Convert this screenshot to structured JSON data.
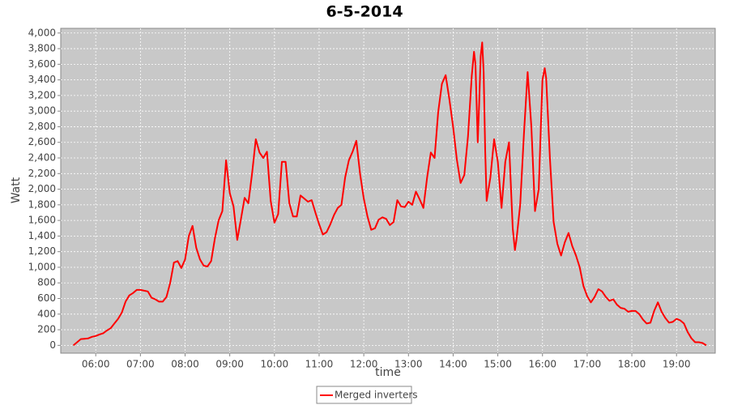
{
  "chart_data": {
    "type": "line",
    "title": "6-5-2014",
    "x_label": "time",
    "y_label": "Watt",
    "x": [
      "05:30",
      "05:35",
      "05:40",
      "05:45",
      "05:50",
      "05:55",
      "06:00",
      "06:05",
      "06:10",
      "06:15",
      "06:20",
      "06:25",
      "06:30",
      "06:35",
      "06:40",
      "06:45",
      "06:50",
      "06:55",
      "07:00",
      "07:05",
      "07:10",
      "07:15",
      "07:20",
      "07:25",
      "07:30",
      "07:35",
      "07:40",
      "07:45",
      "07:50",
      "07:55",
      "08:00",
      "08:05",
      "08:10",
      "08:15",
      "08:20",
      "08:25",
      "08:30",
      "08:35",
      "08:40",
      "08:45",
      "08:50",
      "08:55",
      "09:00",
      "09:05",
      "09:10",
      "09:15",
      "09:20",
      "09:25",
      "09:30",
      "09:35",
      "09:40",
      "09:45",
      "09:50",
      "09:55",
      "10:00",
      "10:05",
      "10:10",
      "10:15",
      "10:20",
      "10:25",
      "10:30",
      "10:35",
      "10:40",
      "10:45",
      "10:50",
      "10:55",
      "11:00",
      "11:05",
      "11:10",
      "11:15",
      "11:20",
      "11:25",
      "11:30",
      "11:35",
      "11:40",
      "11:45",
      "11:50",
      "11:55",
      "12:00",
      "12:05",
      "12:10",
      "12:15",
      "12:20",
      "12:25",
      "12:30",
      "12:35",
      "12:40",
      "12:45",
      "12:50",
      "12:55",
      "13:00",
      "13:05",
      "13:10",
      "13:15",
      "13:20",
      "13:25",
      "13:30",
      "13:35",
      "13:40",
      "13:45",
      "13:50",
      "13:55",
      "14:00",
      "14:05",
      "14:10",
      "14:15",
      "14:20",
      "14:25",
      "14:28",
      "14:30",
      "14:33",
      "14:35",
      "14:37",
      "14:39",
      "14:41",
      "14:43",
      "14:45",
      "14:50",
      "14:55",
      "15:00",
      "15:05",
      "15:10",
      "15:15",
      "15:20",
      "15:23",
      "15:25",
      "15:30",
      "15:35",
      "15:40",
      "15:45",
      "15:50",
      "15:55",
      "16:00",
      "16:03",
      "16:05",
      "16:10",
      "16:15",
      "16:20",
      "16:25",
      "16:30",
      "16:35",
      "16:40",
      "16:45",
      "16:50",
      "16:55",
      "17:00",
      "17:05",
      "17:10",
      "17:15",
      "17:20",
      "17:25",
      "17:30",
      "17:35",
      "17:40",
      "17:45",
      "17:50",
      "17:55",
      "18:00",
      "18:05",
      "18:10",
      "18:15",
      "18:20",
      "18:25",
      "18:30",
      "18:35",
      "18:40",
      "18:45",
      "18:50",
      "18:55",
      "19:00",
      "19:05",
      "19:10",
      "19:15",
      "19:20",
      "19:25",
      "19:30",
      "19:35",
      "19:40"
    ],
    "series": [
      {
        "name": "Merged inverters",
        "color": "#ff0000",
        "values": [
          0,
          40,
          80,
          85,
          90,
          110,
          120,
          140,
          155,
          190,
          220,
          280,
          340,
          420,
          560,
          640,
          670,
          710,
          710,
          700,
          690,
          610,
          590,
          560,
          560,
          620,
          800,
          1060,
          1080,
          990,
          1100,
          1400,
          1530,
          1250,
          1100,
          1020,
          1010,
          1080,
          1370,
          1600,
          1720,
          2370,
          1950,
          1780,
          1350,
          1620,
          1890,
          1820,
          2200,
          2640,
          2470,
          2400,
          2480,
          1850,
          1570,
          1680,
          2350,
          2350,
          1820,
          1650,
          1650,
          1920,
          1880,
          1840,
          1860,
          1700,
          1550,
          1420,
          1450,
          1550,
          1670,
          1760,
          1800,
          2150,
          2370,
          2480,
          2620,
          2200,
          1880,
          1650,
          1480,
          1500,
          1610,
          1640,
          1620,
          1540,
          1580,
          1860,
          1780,
          1770,
          1840,
          1800,
          1970,
          1870,
          1760,
          2150,
          2470,
          2400,
          2990,
          3350,
          3460,
          3150,
          2800,
          2380,
          2080,
          2180,
          2680,
          3450,
          3760,
          3600,
          2600,
          3100,
          3700,
          3880,
          3500,
          2500,
          1850,
          2150,
          2640,
          2350,
          1760,
          2350,
          2600,
          1500,
          1220,
          1350,
          1800,
          2700,
          3500,
          2800,
          1720,
          2000,
          3400,
          3550,
          3420,
          2400,
          1580,
          1300,
          1150,
          1320,
          1440,
          1270,
          1150,
          1000,
          760,
          630,
          550,
          620,
          720,
          690,
          620,
          570,
          590,
          520,
          480,
          470,
          430,
          440,
          440,
          400,
          330,
          280,
          290,
          440,
          550,
          430,
          350,
          290,
          300,
          340,
          320,
          280,
          170,
          90,
          40,
          40,
          30,
          0
        ]
      }
    ],
    "xlim": [
      "05:13",
      "19:52"
    ],
    "xticks": [
      "06:00",
      "07:00",
      "08:00",
      "09:00",
      "10:00",
      "11:00",
      "12:00",
      "13:00",
      "14:00",
      "15:00",
      "16:00",
      "17:00",
      "18:00",
      "19:00"
    ],
    "ylim": [
      -100,
      4060
    ],
    "yticks": [
      0,
      200,
      400,
      600,
      800,
      {
        "value": 1000,
        "label": "1,000"
      },
      {
        "value": 1200,
        "label": "1,200"
      },
      {
        "value": 1400,
        "label": "1,400"
      },
      {
        "value": 1600,
        "label": "1,600"
      },
      {
        "value": 1800,
        "label": "1,800"
      },
      {
        "value": 2000,
        "label": "2,000"
      },
      {
        "value": 2200,
        "label": "2,200"
      },
      {
        "value": 2400,
        "label": "2,400"
      },
      {
        "value": 2600,
        "label": "2,600"
      },
      {
        "value": 2800,
        "label": "2,800"
      },
      {
        "value": 3000,
        "label": "3,000"
      },
      {
        "value": 3200,
        "label": "3,200"
      },
      {
        "value": 3400,
        "label": "3,400"
      },
      {
        "value": 3600,
        "label": "3,600"
      },
      {
        "value": 3800,
        "label": "3,800"
      },
      {
        "value": 4000,
        "label": "4,000"
      }
    ],
    "grid": true,
    "legend": "bottom"
  }
}
